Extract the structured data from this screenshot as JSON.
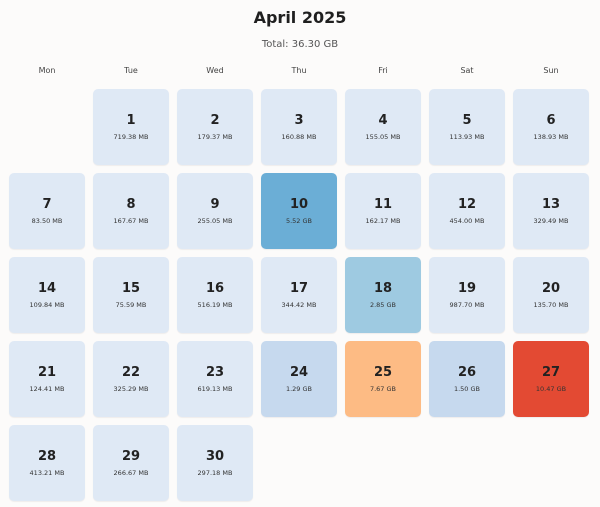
{
  "title": "April 2025",
  "subtitle": "Total: 36.30 GB",
  "weekdays": [
    "Mon",
    "Tue",
    "Wed",
    "Thu",
    "Fri",
    "Sat",
    "Sun"
  ],
  "colors": {
    "base": "#dfe9f5",
    "medium_blue": "#c6d9ee",
    "light_blue": "#9ecae1",
    "blue": "#6baed6",
    "orange": "#fdbb84",
    "red": "#e34a33"
  },
  "days": [
    {
      "day": "1",
      "size": "719.38 MB",
      "color": "#dfe9f5"
    },
    {
      "day": "2",
      "size": "179.37 MB",
      "color": "#dfe9f5"
    },
    {
      "day": "3",
      "size": "160.88 MB",
      "color": "#dfe9f5"
    },
    {
      "day": "4",
      "size": "155.05 MB",
      "color": "#dfe9f5"
    },
    {
      "day": "5",
      "size": "113.93 MB",
      "color": "#dfe9f5"
    },
    {
      "day": "6",
      "size": "138.93 MB",
      "color": "#dfe9f5"
    },
    {
      "day": "7",
      "size": "83.50 MB",
      "color": "#dfe9f5"
    },
    {
      "day": "8",
      "size": "167.67 MB",
      "color": "#dfe9f5"
    },
    {
      "day": "9",
      "size": "255.05 MB",
      "color": "#dfe9f5"
    },
    {
      "day": "10",
      "size": "5.52 GB",
      "color": "#6baed6"
    },
    {
      "day": "11",
      "size": "162.17 MB",
      "color": "#dfe9f5"
    },
    {
      "day": "12",
      "size": "454.00 MB",
      "color": "#dfe9f5"
    },
    {
      "day": "13",
      "size": "329.49 MB",
      "color": "#dfe9f5"
    },
    {
      "day": "14",
      "size": "109.84 MB",
      "color": "#dfe9f5"
    },
    {
      "day": "15",
      "size": "75.59 MB",
      "color": "#dfe9f5"
    },
    {
      "day": "16",
      "size": "516.19 MB",
      "color": "#dfe9f5"
    },
    {
      "day": "17",
      "size": "344.42 MB",
      "color": "#dfe9f5"
    },
    {
      "day": "18",
      "size": "2.85 GB",
      "color": "#9ecae1"
    },
    {
      "day": "19",
      "size": "987.70 MB",
      "color": "#dfe9f5"
    },
    {
      "day": "20",
      "size": "135.70 MB",
      "color": "#dfe9f5"
    },
    {
      "day": "21",
      "size": "124.41 MB",
      "color": "#dfe9f5"
    },
    {
      "day": "22",
      "size": "325.29 MB",
      "color": "#dfe9f5"
    },
    {
      "day": "23",
      "size": "619.13 MB",
      "color": "#dfe9f5"
    },
    {
      "day": "24",
      "size": "1.29 GB",
      "color": "#c6d9ee"
    },
    {
      "day": "25",
      "size": "7.67 GB",
      "color": "#fdbb84"
    },
    {
      "day": "26",
      "size": "1.50 GB",
      "color": "#c6d9ee"
    },
    {
      "day": "27",
      "size": "10.47 GB",
      "color": "#e34a33"
    },
    {
      "day": "28",
      "size": "413.21 MB",
      "color": "#dfe9f5"
    },
    {
      "day": "29",
      "size": "266.67 MB",
      "color": "#dfe9f5"
    },
    {
      "day": "30",
      "size": "297.18 MB",
      "color": "#dfe9f5"
    }
  ]
}
